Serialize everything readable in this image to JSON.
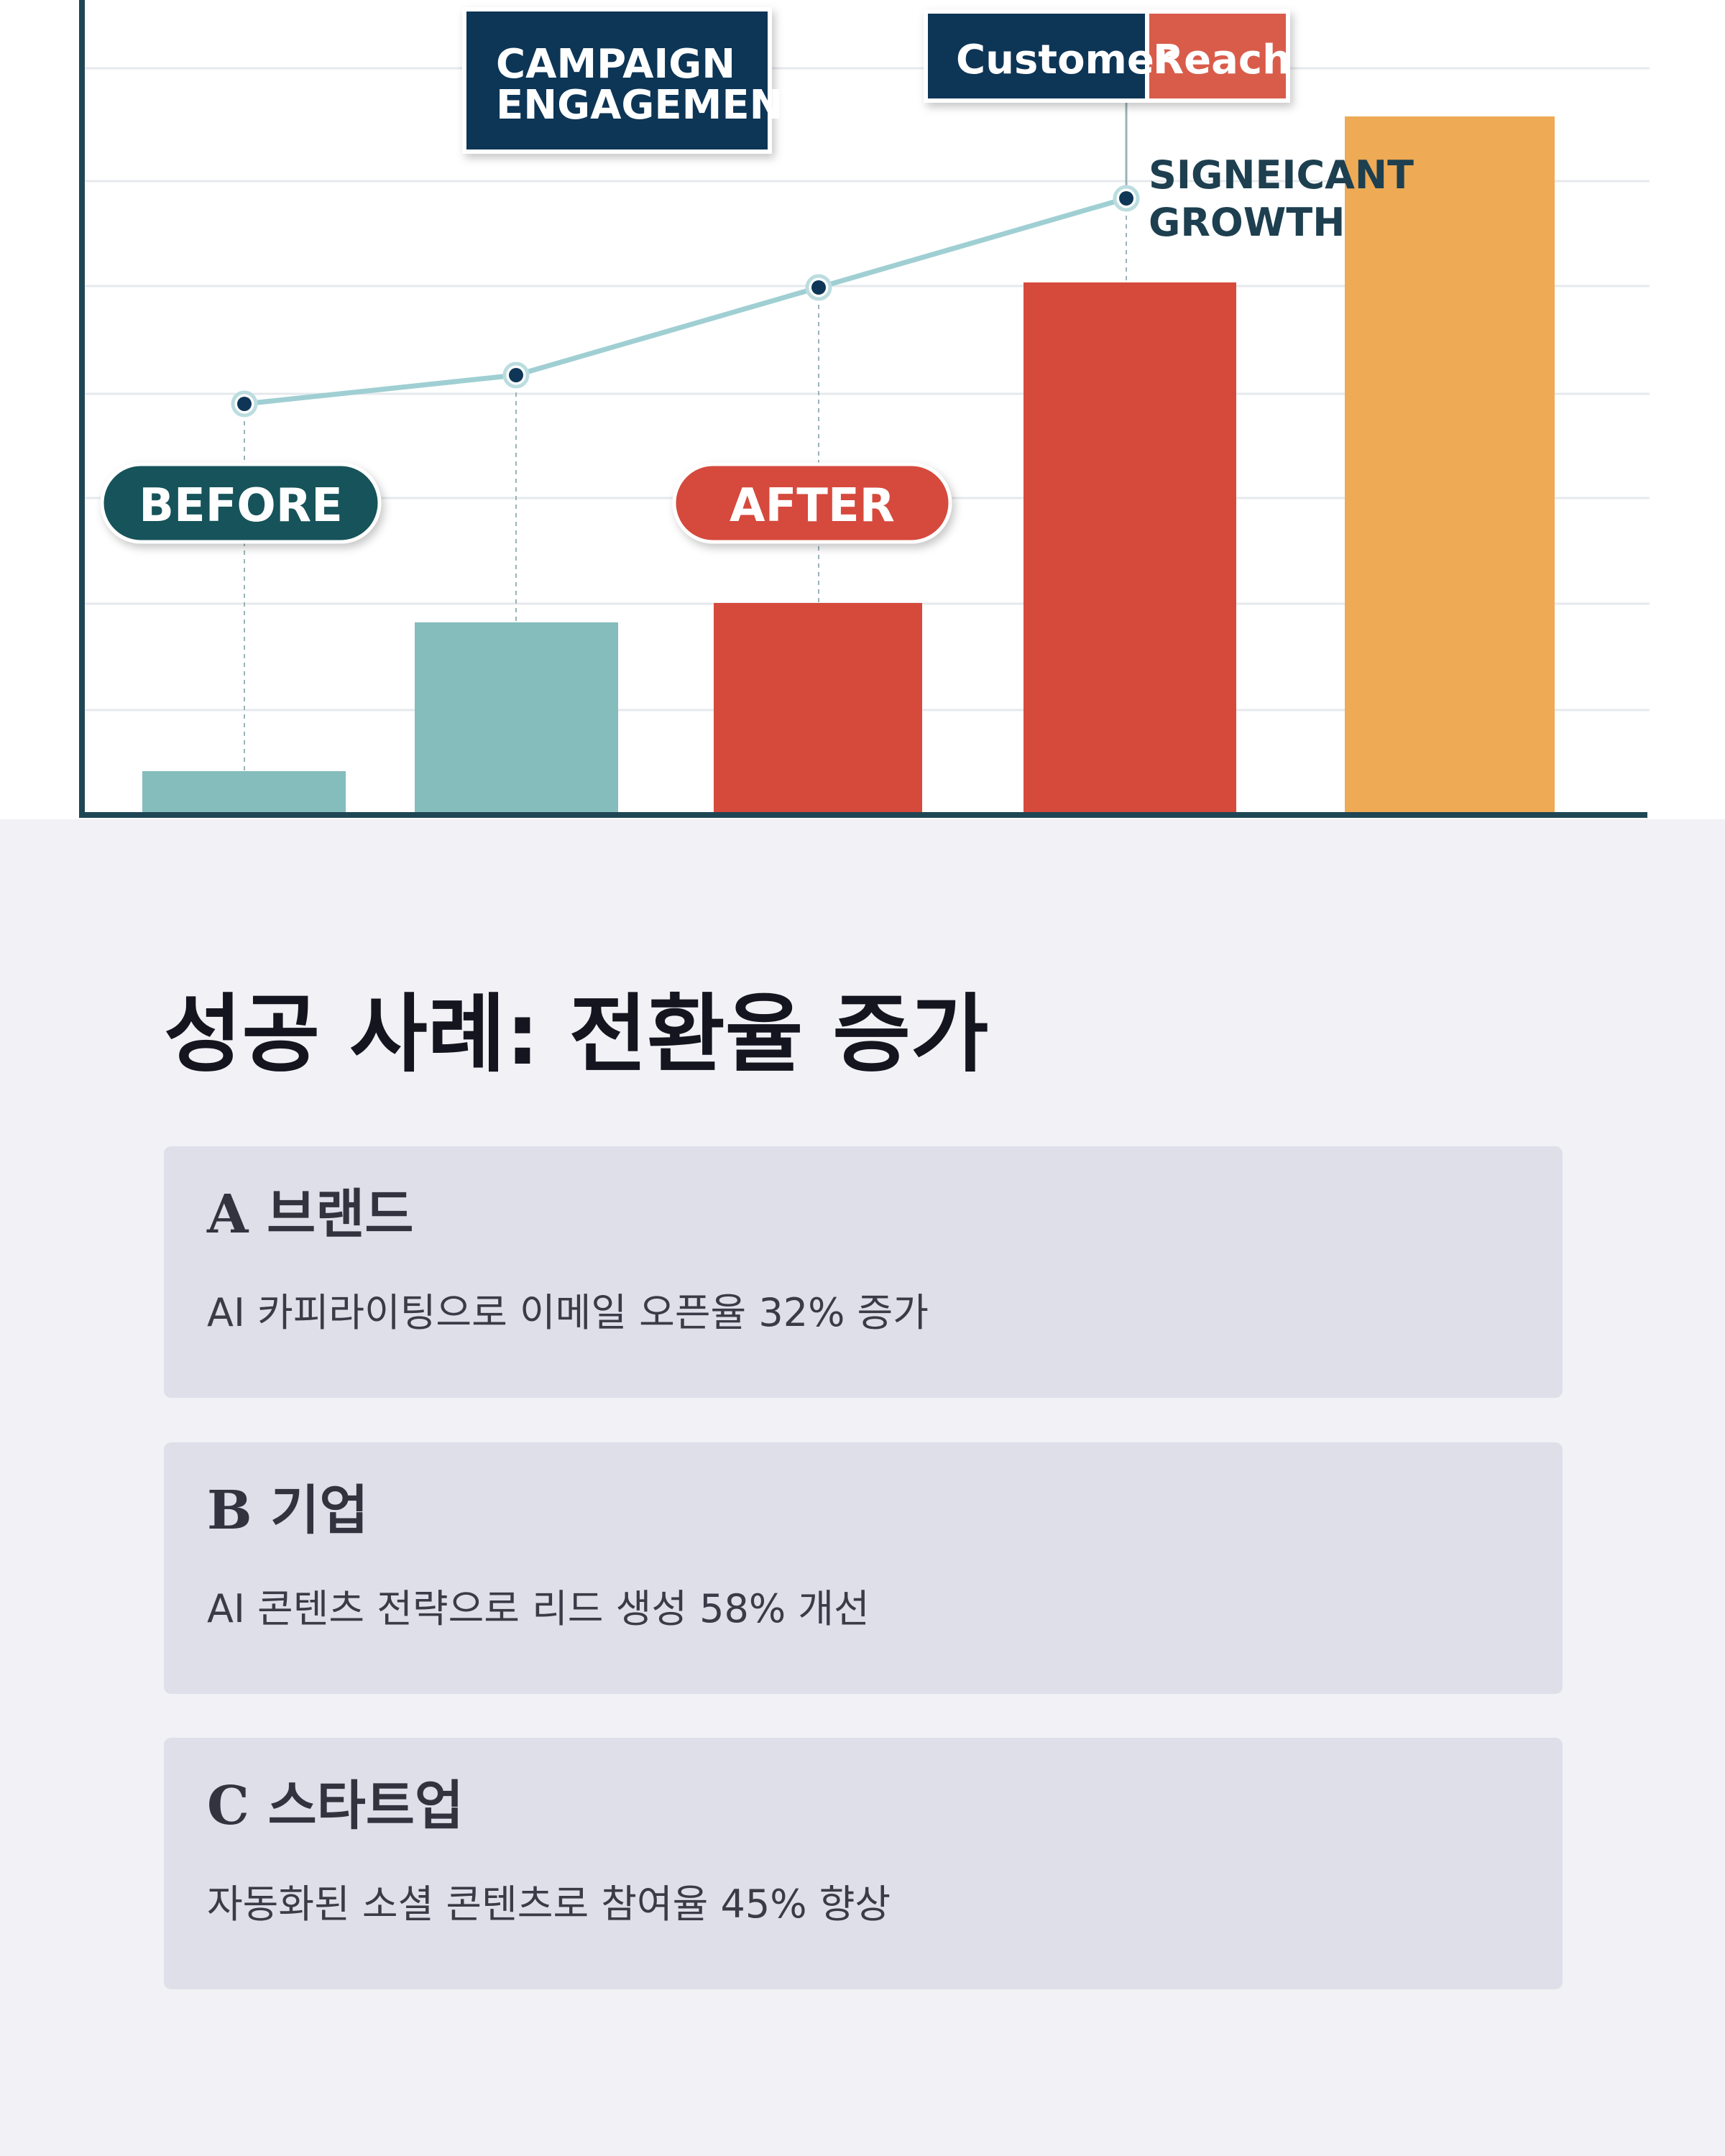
{
  "hero_chart": {
    "labels": {
      "campaign_line1": "CAMPAIGN",
      "campaign_line2": "ENGAGEMENT",
      "customer": "Customer",
      "reach": "Reach",
      "growth_line1": "SIGNEICANT",
      "growth_line2": "GROWTH",
      "before": "BEFORE",
      "after": "AFTER"
    },
    "colors": {
      "teal": "#85bcbc",
      "red": "#d64a3c",
      "orange": "#eeaa55",
      "navy": "#0f3656",
      "dark_teal": "#13535a",
      "axis": "#1f4655"
    }
  },
  "page": {
    "title": "성공 사례: 전환율 증가"
  },
  "cases": [
    {
      "title": "A 브랜드",
      "description": "AI 카피라이팅으로 이메일 오픈율 32% 증가"
    },
    {
      "title": "B 기업",
      "description": "AI 콘텐츠 전략으로 리드 생성 58% 개선"
    },
    {
      "title": "C 스타트업",
      "description": "자동화된 소셜 콘텐츠로 참여율 45% 향상"
    }
  ]
}
